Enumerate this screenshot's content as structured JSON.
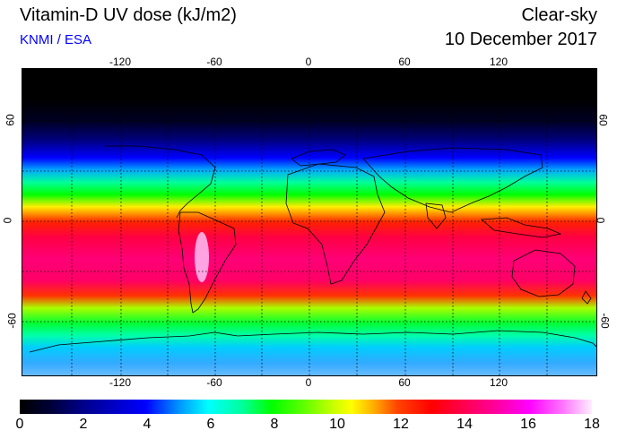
{
  "header": {
    "title": "Vitamin-D UV dose (kJ/m2)",
    "subtitle": "KNMI / ESA",
    "condition": "Clear-sky",
    "date": "10 December 2017"
  },
  "map": {
    "projection": "equirectangular",
    "longitude_ticks": [
      "-120",
      "-60",
      "0",
      "60",
      "120"
    ],
    "latitude_ticks": [
      "60",
      "0",
      "-60"
    ],
    "gridlines": "dotted",
    "coastlines": true
  },
  "colorbar": {
    "labels": [
      "0",
      "2",
      "4",
      "6",
      "8",
      "10",
      "12",
      "14",
      "16",
      "18"
    ],
    "colors": [
      "#000000",
      "#00008a",
      "#0000ff",
      "#00ffff",
      "#00ff00",
      "#ffff00",
      "#ff0000",
      "#ff0099",
      "#ff00ff",
      "#ffeeff"
    ]
  }
}
